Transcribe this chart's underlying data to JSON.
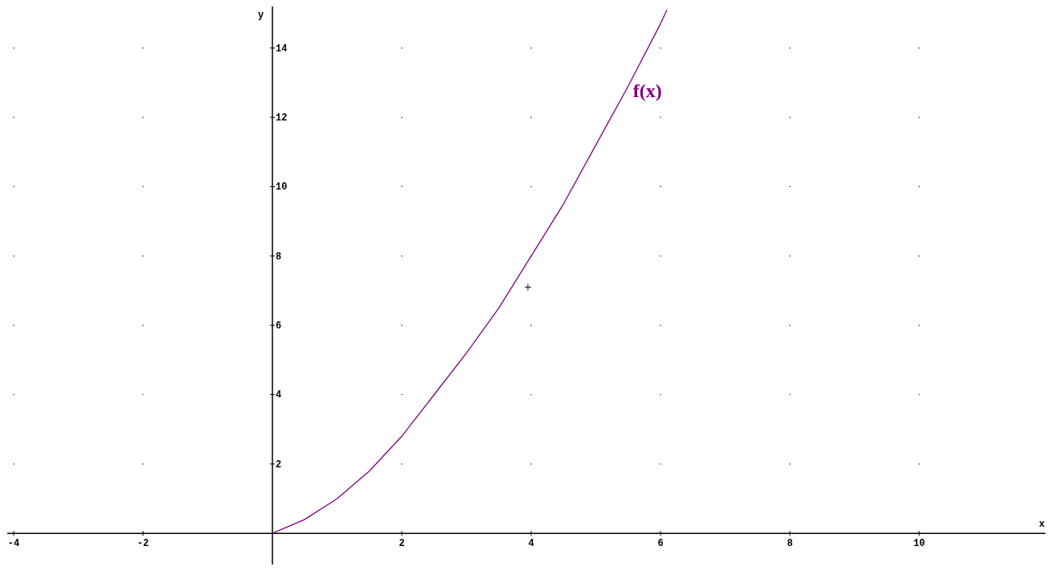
{
  "chart_data": {
    "type": "line",
    "xlabel": "x",
    "ylabel": "y",
    "xlim": [
      -4.1,
      11.95
    ],
    "ylim": [
      -0.9,
      15.2
    ],
    "xticks": [
      -4,
      -2,
      2,
      4,
      6,
      8,
      10
    ],
    "yticks": [
      2,
      4,
      6,
      8,
      10,
      12,
      14
    ],
    "grid": true,
    "marker": "none",
    "line_style": "solid",
    "series": [
      {
        "name": "f(x)",
        "color": "#800080",
        "x": [
          0,
          0.5,
          1,
          1.5,
          2,
          2.5,
          3,
          3.5,
          4,
          4.5,
          5,
          5.5,
          6,
          6.1
        ],
        "values": [
          0,
          0.4,
          1,
          1.8,
          2.8,
          4,
          5.2,
          6.5,
          8,
          9.5,
          11.2,
          12.9,
          14.7,
          15.1
        ]
      },
      {
        "type": "scatter",
        "marker": "cross",
        "color": "#000000",
        "x": [
          3.95
        ],
        "values": [
          7.1
        ]
      }
    ]
  }
}
